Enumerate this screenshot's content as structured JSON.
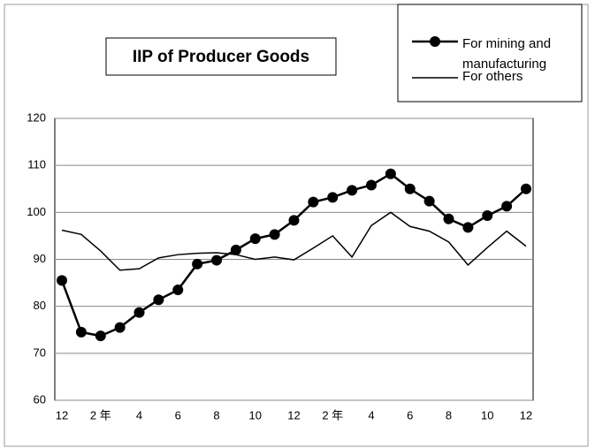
{
  "chart_data": {
    "type": "line",
    "title": "IIP of Producer Goods",
    "categories": [
      "12",
      null,
      "2 年",
      null,
      "4",
      null,
      "6",
      null,
      "8",
      null,
      "10",
      null,
      "12",
      null,
      "2 年",
      null,
      "4",
      null,
      "6",
      null,
      "8",
      null,
      "10",
      null,
      "12"
    ],
    "series": [
      {
        "name": "For mining and manufacturing",
        "color": "#000000",
        "marker": "circle",
        "values": [
          85.5,
          74.5,
          73.7,
          75.5,
          78.7,
          81.4,
          83.5,
          89,
          89.8,
          92,
          94.4,
          95.3,
          98.3,
          102.2,
          103.2,
          104.7,
          105.8,
          108.2,
          105,
          102.4,
          98.6,
          96.8,
          99.3,
          101.3,
          105
        ]
      },
      {
        "name": "For others",
        "color": "#000000",
        "values": [
          96.2,
          95.3,
          91.8,
          87.7,
          88,
          90.3,
          91,
          91.3,
          91.4,
          91,
          90,
          90.5,
          89.9,
          92.4,
          95,
          90.5,
          97.2,
          100,
          97,
          96,
          93.7,
          88.8,
          92.5,
          96,
          92.8
        ]
      }
    ],
    "ylim": [
      60,
      120
    ],
    "yticks": [
      60,
      70,
      80,
      90,
      100,
      110,
      120
    ],
    "grid": true
  }
}
